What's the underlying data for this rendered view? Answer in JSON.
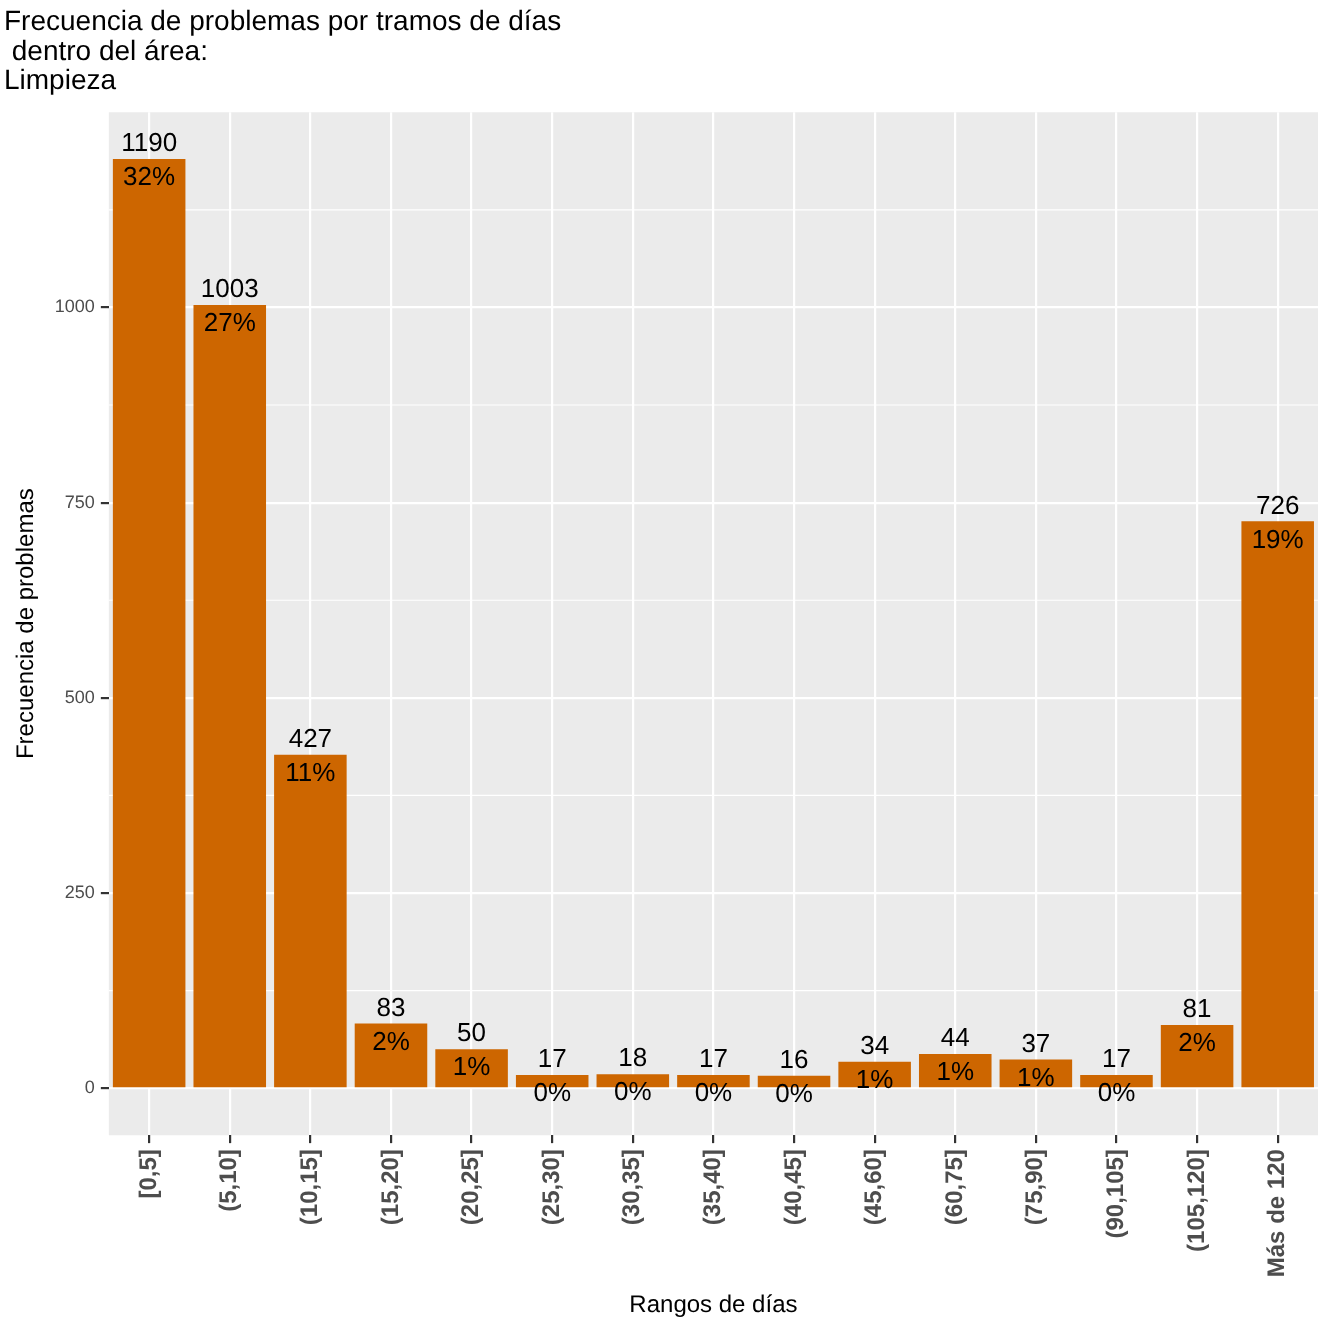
{
  "chart_data": {
    "type": "bar",
    "title": "Frecuencia de problemas por tramos de días\n dentro del área:\nLimpieza",
    "xlabel": "Rangos de días",
    "ylabel": "Frecuencia de problemas",
    "categories": [
      "[0,5]",
      "(5,10]",
      "(10,15]",
      "(15,20]",
      "(20,25]",
      "(25,30]",
      "(30,35]",
      "(35,40]",
      "(40,45]",
      "(45,60]",
      "(60,75]",
      "(75,90]",
      "(90,105]",
      "(105,120]",
      "Más de 120"
    ],
    "values": [
      1190,
      1003,
      427,
      83,
      50,
      17,
      18,
      17,
      16,
      34,
      44,
      37,
      17,
      81,
      726
    ],
    "color": "#cd6600",
    "ylim": [
      -60,
      1250
    ],
    "yticks": [
      0,
      250,
      500,
      750,
      1000
    ],
    "grid": true,
    "legend": false,
    "data_labels": true,
    "annotations": [
      {
        "text": "32%",
        "x": "[0,5]",
        "y": 1190
      },
      {
        "text": "27%",
        "x": "(5,10]",
        "y": 1003
      },
      {
        "text": "11%",
        "x": "(10,15]",
        "y": 427
      },
      {
        "text": "2%",
        "x": "(15,20]",
        "y": 83
      },
      {
        "text": "1%",
        "x": "(20,25]",
        "y": 50
      },
      {
        "text": "0%",
        "x": "(25,30]",
        "y": 17
      },
      {
        "text": "0%",
        "x": "(30,35]",
        "y": 18
      },
      {
        "text": "0%",
        "x": "(35,40]",
        "y": 17
      },
      {
        "text": "0%",
        "x": "(40,45]",
        "y": 16
      },
      {
        "text": "1%",
        "x": "(45,60]",
        "y": 34
      },
      {
        "text": "1%",
        "x": "(60,75]",
        "y": 44
      },
      {
        "text": "1%",
        "x": "(75,90]",
        "y": 37
      },
      {
        "text": "0%",
        "x": "(90,105]",
        "y": 17
      },
      {
        "text": "2%",
        "x": "(105,120]",
        "y": 81
      },
      {
        "text": "19%",
        "x": "Más de 120",
        "y": 726
      }
    ]
  }
}
